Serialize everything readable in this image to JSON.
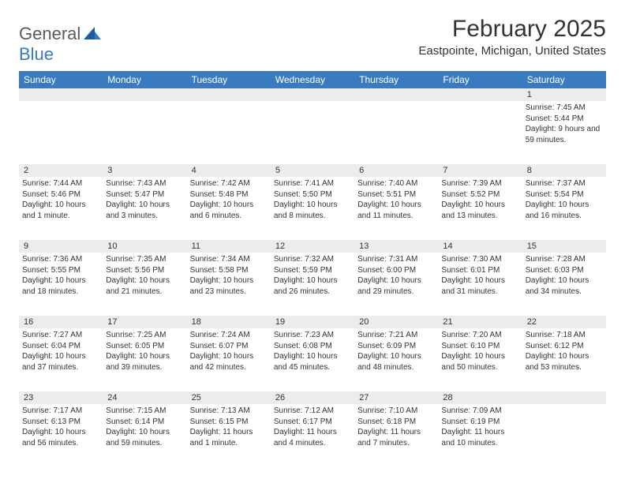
{
  "brand": {
    "part1": "General",
    "part2": "Blue"
  },
  "title": "February 2025",
  "location": "Eastpointe, Michigan, United States",
  "colors": {
    "header_bg": "#3a7bbf",
    "daynum_bg": "#ececec",
    "border": "#3a7bbf",
    "text": "#333333",
    "brand_gray": "#5a5a5a",
    "brand_blue": "#3a7bbf",
    "page_bg": "#ffffff"
  },
  "typography": {
    "title_fontsize": 30,
    "location_fontsize": 15,
    "header_fontsize": 12,
    "daynum_fontsize": 11,
    "body_fontsize": 10
  },
  "day_labels": [
    "Sunday",
    "Monday",
    "Tuesday",
    "Wednesday",
    "Thursday",
    "Friday",
    "Saturday"
  ],
  "weeks": [
    [
      {
        "n": "",
        "sr": "",
        "ss": "",
        "dl": ""
      },
      {
        "n": "",
        "sr": "",
        "ss": "",
        "dl": ""
      },
      {
        "n": "",
        "sr": "",
        "ss": "",
        "dl": ""
      },
      {
        "n": "",
        "sr": "",
        "ss": "",
        "dl": ""
      },
      {
        "n": "",
        "sr": "",
        "ss": "",
        "dl": ""
      },
      {
        "n": "",
        "sr": "",
        "ss": "",
        "dl": ""
      },
      {
        "n": "1",
        "sr": "Sunrise: 7:45 AM",
        "ss": "Sunset: 5:44 PM",
        "dl": "Daylight: 9 hours and 59 minutes."
      }
    ],
    [
      {
        "n": "2",
        "sr": "Sunrise: 7:44 AM",
        "ss": "Sunset: 5:46 PM",
        "dl": "Daylight: 10 hours and 1 minute."
      },
      {
        "n": "3",
        "sr": "Sunrise: 7:43 AM",
        "ss": "Sunset: 5:47 PM",
        "dl": "Daylight: 10 hours and 3 minutes."
      },
      {
        "n": "4",
        "sr": "Sunrise: 7:42 AM",
        "ss": "Sunset: 5:48 PM",
        "dl": "Daylight: 10 hours and 6 minutes."
      },
      {
        "n": "5",
        "sr": "Sunrise: 7:41 AM",
        "ss": "Sunset: 5:50 PM",
        "dl": "Daylight: 10 hours and 8 minutes."
      },
      {
        "n": "6",
        "sr": "Sunrise: 7:40 AM",
        "ss": "Sunset: 5:51 PM",
        "dl": "Daylight: 10 hours and 11 minutes."
      },
      {
        "n": "7",
        "sr": "Sunrise: 7:39 AM",
        "ss": "Sunset: 5:52 PM",
        "dl": "Daylight: 10 hours and 13 minutes."
      },
      {
        "n": "8",
        "sr": "Sunrise: 7:37 AM",
        "ss": "Sunset: 5:54 PM",
        "dl": "Daylight: 10 hours and 16 minutes."
      }
    ],
    [
      {
        "n": "9",
        "sr": "Sunrise: 7:36 AM",
        "ss": "Sunset: 5:55 PM",
        "dl": "Daylight: 10 hours and 18 minutes."
      },
      {
        "n": "10",
        "sr": "Sunrise: 7:35 AM",
        "ss": "Sunset: 5:56 PM",
        "dl": "Daylight: 10 hours and 21 minutes."
      },
      {
        "n": "11",
        "sr": "Sunrise: 7:34 AM",
        "ss": "Sunset: 5:58 PM",
        "dl": "Daylight: 10 hours and 23 minutes."
      },
      {
        "n": "12",
        "sr": "Sunrise: 7:32 AM",
        "ss": "Sunset: 5:59 PM",
        "dl": "Daylight: 10 hours and 26 minutes."
      },
      {
        "n": "13",
        "sr": "Sunrise: 7:31 AM",
        "ss": "Sunset: 6:00 PM",
        "dl": "Daylight: 10 hours and 29 minutes."
      },
      {
        "n": "14",
        "sr": "Sunrise: 7:30 AM",
        "ss": "Sunset: 6:01 PM",
        "dl": "Daylight: 10 hours and 31 minutes."
      },
      {
        "n": "15",
        "sr": "Sunrise: 7:28 AM",
        "ss": "Sunset: 6:03 PM",
        "dl": "Daylight: 10 hours and 34 minutes."
      }
    ],
    [
      {
        "n": "16",
        "sr": "Sunrise: 7:27 AM",
        "ss": "Sunset: 6:04 PM",
        "dl": "Daylight: 10 hours and 37 minutes."
      },
      {
        "n": "17",
        "sr": "Sunrise: 7:25 AM",
        "ss": "Sunset: 6:05 PM",
        "dl": "Daylight: 10 hours and 39 minutes."
      },
      {
        "n": "18",
        "sr": "Sunrise: 7:24 AM",
        "ss": "Sunset: 6:07 PM",
        "dl": "Daylight: 10 hours and 42 minutes."
      },
      {
        "n": "19",
        "sr": "Sunrise: 7:23 AM",
        "ss": "Sunset: 6:08 PM",
        "dl": "Daylight: 10 hours and 45 minutes."
      },
      {
        "n": "20",
        "sr": "Sunrise: 7:21 AM",
        "ss": "Sunset: 6:09 PM",
        "dl": "Daylight: 10 hours and 48 minutes."
      },
      {
        "n": "21",
        "sr": "Sunrise: 7:20 AM",
        "ss": "Sunset: 6:10 PM",
        "dl": "Daylight: 10 hours and 50 minutes."
      },
      {
        "n": "22",
        "sr": "Sunrise: 7:18 AM",
        "ss": "Sunset: 6:12 PM",
        "dl": "Daylight: 10 hours and 53 minutes."
      }
    ],
    [
      {
        "n": "23",
        "sr": "Sunrise: 7:17 AM",
        "ss": "Sunset: 6:13 PM",
        "dl": "Daylight: 10 hours and 56 minutes."
      },
      {
        "n": "24",
        "sr": "Sunrise: 7:15 AM",
        "ss": "Sunset: 6:14 PM",
        "dl": "Daylight: 10 hours and 59 minutes."
      },
      {
        "n": "25",
        "sr": "Sunrise: 7:13 AM",
        "ss": "Sunset: 6:15 PM",
        "dl": "Daylight: 11 hours and 1 minute."
      },
      {
        "n": "26",
        "sr": "Sunrise: 7:12 AM",
        "ss": "Sunset: 6:17 PM",
        "dl": "Daylight: 11 hours and 4 minutes."
      },
      {
        "n": "27",
        "sr": "Sunrise: 7:10 AM",
        "ss": "Sunset: 6:18 PM",
        "dl": "Daylight: 11 hours and 7 minutes."
      },
      {
        "n": "28",
        "sr": "Sunrise: 7:09 AM",
        "ss": "Sunset: 6:19 PM",
        "dl": "Daylight: 11 hours and 10 minutes."
      },
      {
        "n": "",
        "sr": "",
        "ss": "",
        "dl": ""
      }
    ]
  ]
}
